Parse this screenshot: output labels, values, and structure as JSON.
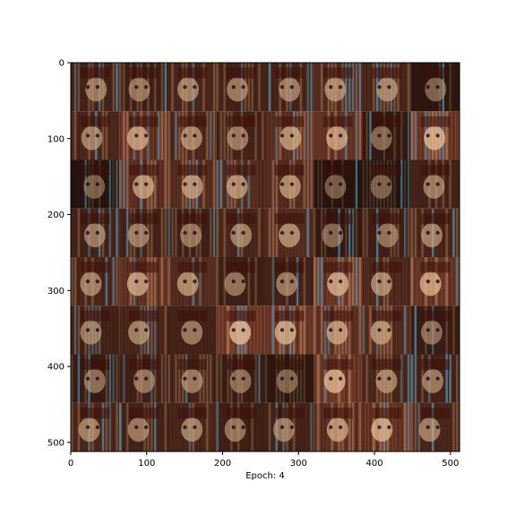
{
  "figure": {
    "xlabel": "Epoch: 4"
  },
  "chart_data": {
    "type": "heatmap",
    "description_free": true,
    "xlim": [
      0,
      512
    ],
    "ylim": [
      512,
      0
    ],
    "xticks": [
      0,
      100,
      200,
      300,
      400,
      500
    ],
    "yticks": [
      0,
      100,
      200,
      300,
      400,
      500
    ],
    "grid_rows": 8,
    "grid_cols": 8,
    "xlabel": "Epoch: 4",
    "grid": false,
    "tile_brightness": [
      [
        0.35,
        0.3,
        0.4,
        0.35,
        0.38,
        0.45,
        0.4,
        0.15
      ],
      [
        0.4,
        0.6,
        0.45,
        0.35,
        0.55,
        0.6,
        0.2,
        0.7
      ],
      [
        0.1,
        0.55,
        0.5,
        0.5,
        0.5,
        0.1,
        0.1,
        0.35
      ],
      [
        0.35,
        0.35,
        0.3,
        0.4,
        0.5,
        0.2,
        0.3,
        0.4
      ],
      [
        0.4,
        0.6,
        0.5,
        0.3,
        0.35,
        0.65,
        0.45,
        0.65
      ],
      [
        0.35,
        0.4,
        0.35,
        0.75,
        0.65,
        0.55,
        0.5,
        0.25
      ],
      [
        0.25,
        0.3,
        0.35,
        0.25,
        0.15,
        0.7,
        0.4,
        0.35
      ],
      [
        0.4,
        0.35,
        0.4,
        0.3,
        0.35,
        0.55,
        0.65,
        0.4
      ]
    ]
  }
}
